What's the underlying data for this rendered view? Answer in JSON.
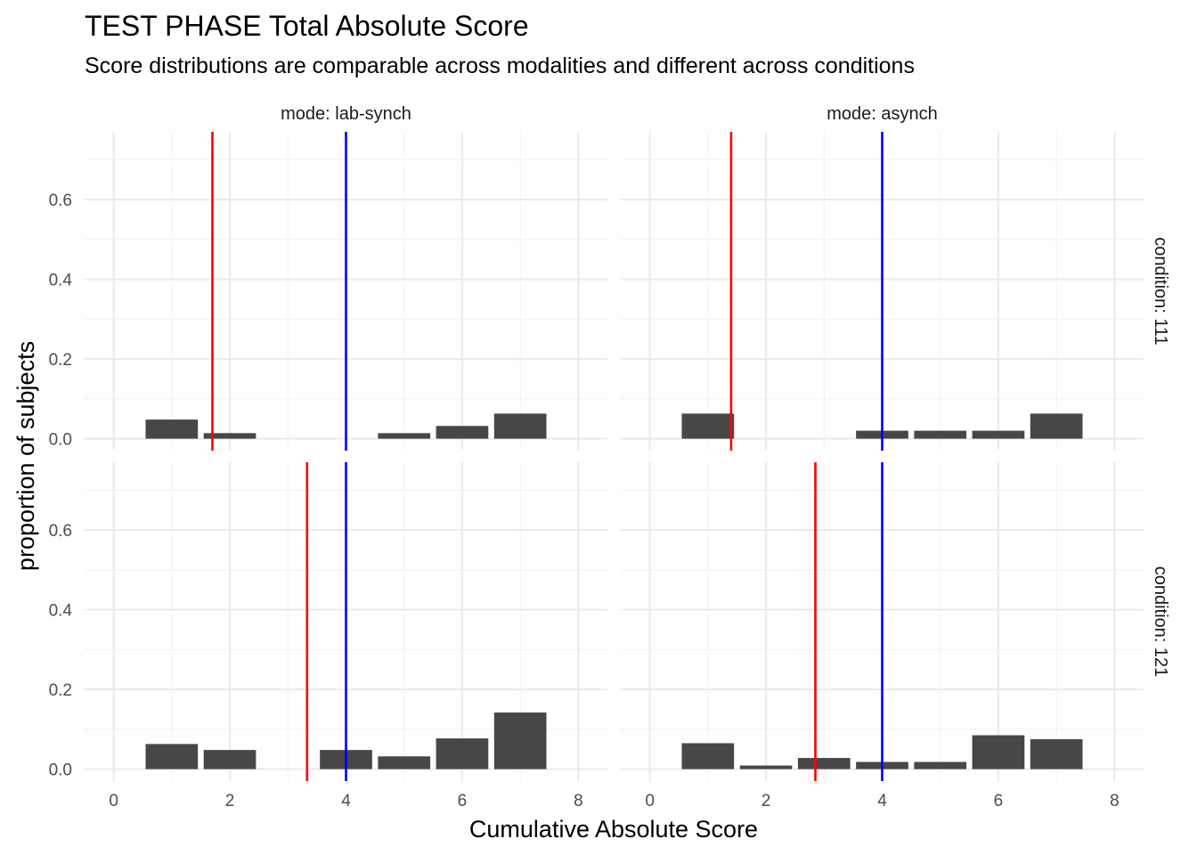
{
  "chart_data": {
    "type": "bar",
    "title": "TEST PHASE Total Absolute Score",
    "subtitle": "Score distributions are comparable across modalities and different across conditions",
    "xlabel": "Cumulative Absolute Score",
    "ylabel": "proportion of subjects",
    "xlim": [
      -0.5,
      8.5
    ],
    "ylim": [
      -0.03,
      0.77
    ],
    "x_ticks": [
      "0",
      "2",
      "4",
      "6",
      "8"
    ],
    "y_ticks": [
      "0.0",
      "0.2",
      "0.4",
      "0.6"
    ],
    "grid": true,
    "colors": {
      "bar": "#474747",
      "mean_line": "#ff0000",
      "reference_line": "#0000ff"
    },
    "facet_cols": [
      "mode: lab-synch",
      "mode: asynch"
    ],
    "facet_rows": [
      "condition: 111",
      "condition: 121"
    ],
    "panels": [
      {
        "mode": "mode: lab-synch",
        "condition": "condition: 111",
        "x": [
          1,
          2,
          5,
          6,
          7
        ],
        "values": [
          0.048,
          0.014,
          0.014,
          0.032,
          0.063
        ],
        "mean_line": 1.7,
        "reference_line": 4
      },
      {
        "mode": "mode: asynch",
        "condition": "condition: 111",
        "x": [
          1,
          4,
          5,
          6,
          7
        ],
        "values": [
          0.063,
          0.02,
          0.02,
          0.02,
          0.063
        ],
        "mean_line": 1.4,
        "reference_line": 4
      },
      {
        "mode": "mode: lab-synch",
        "condition": "condition: 121",
        "x": [
          1,
          2,
          4,
          5,
          6,
          7
        ],
        "values": [
          0.063,
          0.048,
          0.048,
          0.032,
          0.077,
          0.142
        ],
        "mean_line": 3.33,
        "reference_line": 4
      },
      {
        "mode": "mode: asynch",
        "condition": "condition: 121",
        "x": [
          1,
          2,
          3,
          4,
          5,
          6,
          7
        ],
        "values": [
          0.065,
          0.009,
          0.028,
          0.018,
          0.018,
          0.085,
          0.075
        ],
        "mean_line": 2.85,
        "reference_line": 4
      }
    ]
  }
}
